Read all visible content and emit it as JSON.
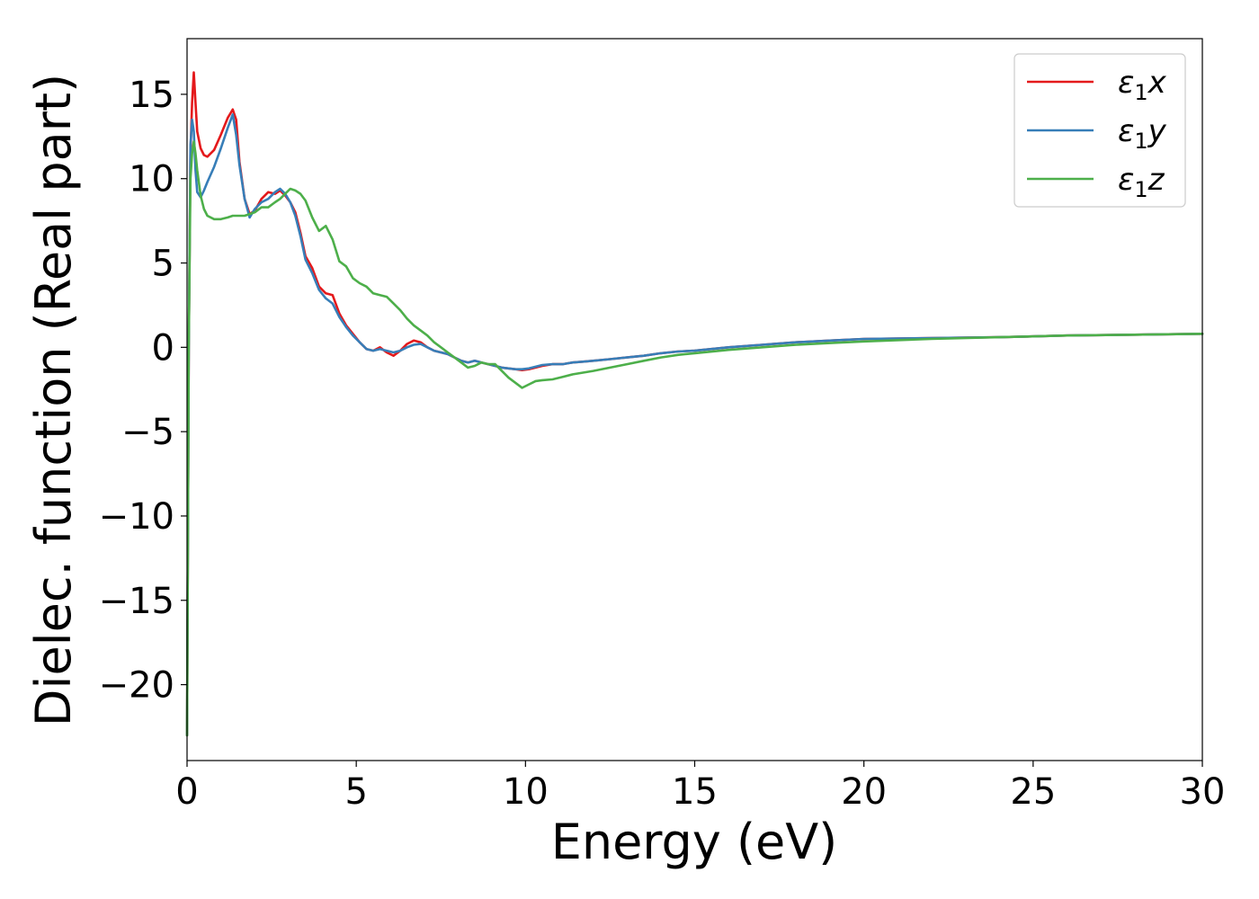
{
  "chart_data": {
    "type": "line",
    "title": "",
    "xlabel": "Energy (eV)",
    "ylabel": "Dielec. function (Real part)",
    "xlim": [
      0,
      30
    ],
    "ylim": [
      -24.5,
      18.3
    ],
    "xticks": [
      0,
      5,
      10,
      15,
      20,
      25,
      30
    ],
    "xtick_labels": [
      "0",
      "5",
      "10",
      "15",
      "20",
      "25",
      "30"
    ],
    "yticks": [
      15,
      10,
      5,
      0,
      -5,
      -10,
      -15,
      -20
    ],
    "ytick_labels": [
      "15",
      "10",
      "5",
      "0",
      "−10",
      "−15",
      "−20"
    ],
    "ytick_labels_full": [
      "15",
      "10",
      "5",
      "0",
      "−5",
      "−10",
      "−15",
      "−20"
    ],
    "grid": false,
    "legend_position": "top-right",
    "series": [
      {
        "name": "ε₁x",
        "name_base": "ε",
        "name_sub": "1",
        "name_var": "x",
        "color": "#e41a1c",
        "x": [
          0.0,
          0.05,
          0.1,
          0.15,
          0.2,
          0.25,
          0.3,
          0.4,
          0.5,
          0.6,
          0.8,
          1.0,
          1.2,
          1.35,
          1.45,
          1.55,
          1.7,
          1.85,
          2.0,
          2.2,
          2.4,
          2.6,
          2.75,
          2.9,
          3.05,
          3.2,
          3.35,
          3.5,
          3.7,
          3.9,
          4.1,
          4.3,
          4.5,
          4.7,
          4.9,
          5.1,
          5.3,
          5.5,
          5.7,
          5.9,
          6.1,
          6.3,
          6.5,
          6.7,
          6.9,
          7.1,
          7.3,
          7.5,
          7.7,
          7.9,
          8.1,
          8.3,
          8.5,
          8.7,
          8.9,
          9.1,
          9.3,
          9.5,
          9.7,
          9.9,
          10.1,
          10.3,
          10.5,
          10.8,
          11.1,
          11.4,
          11.7,
          12.0,
          12.5,
          13.0,
          13.5,
          14.0,
          14.5,
          15.0,
          16.0,
          17.0,
          18.0,
          19.0,
          20.0,
          22.0,
          24.0,
          26.0,
          28.0,
          30.0
        ],
        "values": [
          -23.0,
          0.0,
          11.5,
          14.5,
          16.3,
          14.5,
          12.8,
          11.8,
          11.4,
          11.3,
          11.7,
          12.6,
          13.6,
          14.1,
          13.5,
          11.0,
          8.8,
          7.9,
          8.1,
          8.8,
          9.2,
          9.1,
          9.3,
          9.0,
          8.6,
          8.0,
          6.8,
          5.4,
          4.7,
          3.6,
          3.2,
          3.1,
          2.0,
          1.3,
          0.8,
          0.3,
          -0.1,
          -0.2,
          0.0,
          -0.3,
          -0.5,
          -0.2,
          0.2,
          0.4,
          0.3,
          0.0,
          -0.2,
          -0.3,
          -0.4,
          -0.6,
          -0.8,
          -0.9,
          -0.8,
          -0.9,
          -1.0,
          -1.1,
          -1.2,
          -1.25,
          -1.3,
          -1.35,
          -1.3,
          -1.2,
          -1.1,
          -1.0,
          -1.0,
          -0.9,
          -0.85,
          -0.8,
          -0.7,
          -0.6,
          -0.5,
          -0.35,
          -0.25,
          -0.2,
          0.0,
          0.15,
          0.3,
          0.4,
          0.5,
          0.55,
          0.6,
          0.7,
          0.75,
          0.8
        ]
      },
      {
        "name": "ε₁y",
        "name_base": "ε",
        "name_sub": "1",
        "name_var": "y",
        "color": "#377eb8",
        "x": [
          0.0,
          0.05,
          0.1,
          0.15,
          0.2,
          0.25,
          0.3,
          0.4,
          0.5,
          0.6,
          0.8,
          1.0,
          1.2,
          1.35,
          1.45,
          1.55,
          1.7,
          1.85,
          2.0,
          2.2,
          2.4,
          2.6,
          2.75,
          2.9,
          3.05,
          3.2,
          3.35,
          3.5,
          3.7,
          3.9,
          4.1,
          4.3,
          4.5,
          4.7,
          4.9,
          5.1,
          5.3,
          5.5,
          5.7,
          5.9,
          6.1,
          6.3,
          6.5,
          6.7,
          6.9,
          7.1,
          7.3,
          7.5,
          7.7,
          7.9,
          8.1,
          8.3,
          8.5,
          8.7,
          8.9,
          9.1,
          9.3,
          9.5,
          9.7,
          9.9,
          10.1,
          10.3,
          10.5,
          10.8,
          11.1,
          11.4,
          11.7,
          12.0,
          12.5,
          13.0,
          13.5,
          14.0,
          14.5,
          15.0,
          16.0,
          17.0,
          18.0,
          19.0,
          20.0,
          22.0,
          24.0,
          26.0,
          28.0,
          30.0
        ],
        "values": [
          -23.0,
          0.0,
          12.0,
          13.5,
          12.8,
          10.5,
          9.2,
          8.9,
          9.3,
          9.8,
          10.7,
          11.8,
          13.0,
          13.8,
          12.6,
          10.8,
          8.8,
          7.7,
          8.2,
          8.6,
          8.8,
          9.2,
          9.4,
          9.1,
          8.6,
          7.8,
          6.6,
          5.2,
          4.4,
          3.4,
          2.9,
          2.6,
          1.8,
          1.2,
          0.7,
          0.3,
          -0.1,
          -0.2,
          -0.1,
          -0.2,
          -0.3,
          -0.2,
          0.0,
          0.15,
          0.2,
          0.0,
          -0.2,
          -0.3,
          -0.4,
          -0.6,
          -0.8,
          -0.9,
          -0.8,
          -0.9,
          -1.0,
          -1.1,
          -1.2,
          -1.25,
          -1.3,
          -1.3,
          -1.25,
          -1.15,
          -1.05,
          -1.0,
          -1.0,
          -0.9,
          -0.85,
          -0.8,
          -0.7,
          -0.6,
          -0.5,
          -0.35,
          -0.25,
          -0.2,
          0.0,
          0.15,
          0.3,
          0.4,
          0.5,
          0.55,
          0.6,
          0.7,
          0.75,
          0.8
        ]
      },
      {
        "name": "ε₁z",
        "name_base": "ε",
        "name_sub": "1",
        "name_var": "z",
        "color": "#4daf4a",
        "x": [
          0.0,
          0.05,
          0.1,
          0.15,
          0.2,
          0.25,
          0.3,
          0.4,
          0.5,
          0.6,
          0.8,
          1.0,
          1.2,
          1.35,
          1.45,
          1.55,
          1.7,
          1.85,
          2.0,
          2.2,
          2.4,
          2.6,
          2.75,
          2.9,
          3.05,
          3.2,
          3.35,
          3.5,
          3.7,
          3.9,
          4.1,
          4.3,
          4.5,
          4.7,
          4.9,
          5.1,
          5.3,
          5.5,
          5.7,
          5.9,
          6.1,
          6.3,
          6.5,
          6.7,
          6.9,
          7.1,
          7.3,
          7.5,
          7.7,
          7.9,
          8.1,
          8.3,
          8.5,
          8.7,
          8.9,
          9.1,
          9.3,
          9.5,
          9.7,
          9.9,
          10.1,
          10.3,
          10.5,
          10.8,
          11.1,
          11.4,
          11.7,
          12.0,
          12.5,
          13.0,
          13.5,
          14.0,
          14.5,
          15.0,
          16.0,
          17.0,
          18.0,
          19.0,
          20.0,
          22.0,
          24.0,
          26.0,
          28.0,
          30.0
        ],
        "values": [
          -23.0,
          0.0,
          10.0,
          11.5,
          12.2,
          11.5,
          10.5,
          9.0,
          8.2,
          7.8,
          7.6,
          7.6,
          7.7,
          7.8,
          7.8,
          7.8,
          7.8,
          7.9,
          8.0,
          8.3,
          8.3,
          8.6,
          8.8,
          9.1,
          9.4,
          9.3,
          9.1,
          8.7,
          7.7,
          6.9,
          7.2,
          6.4,
          5.1,
          4.8,
          4.1,
          3.8,
          3.6,
          3.2,
          3.1,
          3.0,
          2.6,
          2.2,
          1.7,
          1.3,
          1.0,
          0.7,
          0.3,
          0.0,
          -0.3,
          -0.6,
          -0.9,
          -1.2,
          -1.1,
          -0.9,
          -1.0,
          -1.0,
          -1.4,
          -1.8,
          -2.1,
          -2.4,
          -2.2,
          -2.0,
          -1.95,
          -1.9,
          -1.75,
          -1.6,
          -1.5,
          -1.4,
          -1.2,
          -1.0,
          -0.8,
          -0.6,
          -0.45,
          -0.35,
          -0.15,
          0.0,
          0.15,
          0.25,
          0.35,
          0.5,
          0.6,
          0.7,
          0.75,
          0.8
        ]
      }
    ]
  }
}
